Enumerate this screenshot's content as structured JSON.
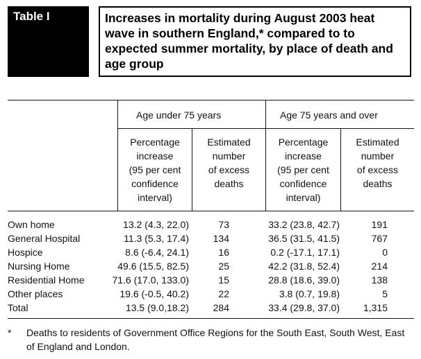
{
  "table_label": "Table I",
  "title": "Increases in mortality during August 2003 heat wave in southern England,* compared to to expected summer mortality, by place of death and age group",
  "groups": [
    "Age under 75 years",
    "Age 75 years and over"
  ],
  "subheaders": [
    [
      "Percentage",
      "increase",
      "(95 per cent",
      "confidence",
      "interval)"
    ],
    [
      "Estimated",
      "number",
      "of excess",
      "deaths"
    ],
    [
      "Percentage",
      "increase",
      "(95 per cent",
      "confidence",
      "interval)"
    ],
    [
      "Estimated",
      "number",
      "of excess",
      "deaths"
    ]
  ],
  "rows": [
    {
      "label": "Own home",
      "u75_pct": "13.2 (4.3, 22.0)",
      "u75_n": "73",
      "o75_pct": "33.2 (23.8, 42.7)",
      "o75_n": "191"
    },
    {
      "label": "General Hospital",
      "u75_pct": "11.3 (5.3, 17.4)",
      "u75_n": "134",
      "o75_pct": "36.5 (31.5, 41.5)",
      "o75_n": "767"
    },
    {
      "label": "Hospice",
      "u75_pct": "8.6 (-6.4, 24.1)",
      "u75_n": "16",
      "o75_pct": "0.2 (-17.1, 17.1)",
      "o75_n": "0"
    },
    {
      "label": "Nursing Home",
      "u75_pct": "49.6 (15.5, 82.5)",
      "u75_n": "25",
      "o75_pct": "42.2 (31.8, 52.4)",
      "o75_n": "214"
    },
    {
      "label": "Residential Home",
      "u75_pct": "71.6 (17.0, 133.0)",
      "u75_n": "15",
      "o75_pct": "28.8 (18.6, 39.0)",
      "o75_n": "138"
    },
    {
      "label": "Other places",
      "u75_pct": "19.6 (-0.5, 40.2)",
      "u75_n": "22",
      "o75_pct": "3.8 (0.7, 19.8)",
      "o75_n": "5"
    },
    {
      "label": "Total",
      "u75_pct": "13.5 (9.0,18.2)",
      "u75_n": "284",
      "o75_pct": "33.4 (29.8, 37.0)",
      "o75_n": "1,315"
    }
  ],
  "footnote": {
    "marker": "*",
    "text": "Deaths to residents of Government Office Regions for the South East, South West, East of England and London."
  }
}
